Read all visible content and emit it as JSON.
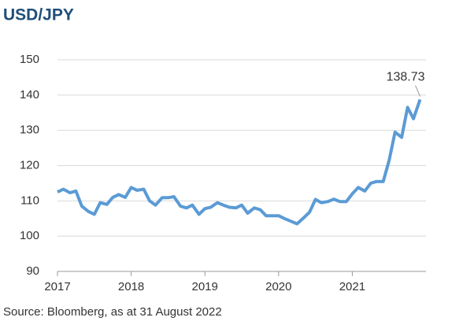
{
  "chart_data": {
    "type": "line",
    "title": "USD/JPY",
    "source": "Source: Bloomberg, as at 31 August 2022",
    "x": [
      2017.0,
      2017.08,
      2017.17,
      2017.25,
      2017.33,
      2017.42,
      2017.5,
      2017.58,
      2017.67,
      2017.75,
      2017.83,
      2017.92,
      2018.0,
      2018.08,
      2018.17,
      2018.25,
      2018.33,
      2018.42,
      2018.5,
      2018.58,
      2018.67,
      2018.75,
      2018.83,
      2018.92,
      2019.0,
      2019.08,
      2019.17,
      2019.25,
      2019.33,
      2019.42,
      2019.5,
      2019.58,
      2019.67,
      2019.75,
      2019.83,
      2019.92,
      2020.0,
      2020.08,
      2020.17,
      2020.25,
      2020.33,
      2020.42,
      2020.5,
      2020.58,
      2020.67,
      2020.75,
      2020.83,
      2020.92,
      2021.0,
      2021.08,
      2021.17,
      2021.25,
      2021.33,
      2021.42,
      2021.5,
      2021.58,
      2021.67,
      2021.75,
      2021.83,
      2021.92
    ],
    "series": [
      {
        "name": "USD/JPY",
        "color": "#5b9bd5",
        "values": [
          112.5,
          113.3,
          112.3,
          112.8,
          108.5,
          107,
          106.2,
          109.5,
          109,
          111,
          111.8,
          111,
          113.8,
          113,
          113.3,
          110,
          108.8,
          110.9,
          110.9,
          111.2,
          108.5,
          108,
          108.8,
          106.2,
          107.8,
          108.2,
          109.5,
          108.8,
          108.2,
          108,
          108.8,
          106.5,
          108,
          107.5,
          105.8,
          105.8,
          105.8,
          105,
          104.2,
          103.5,
          105,
          106.8,
          110.4,
          109.5,
          109.8,
          110.5,
          109.8,
          109.8,
          112,
          113.8,
          112.8,
          115,
          115.5,
          115.5,
          121.5,
          129.5,
          128,
          136.5,
          133.3,
          138.73
        ]
      }
    ],
    "xlim": [
      2017,
      2022
    ],
    "xticks": [
      2017,
      2018,
      2019,
      2020,
      2021
    ],
    "ylim": [
      90,
      150
    ],
    "yticks": [
      90,
      100,
      110,
      120,
      130,
      140,
      150
    ],
    "grid": true
  }
}
